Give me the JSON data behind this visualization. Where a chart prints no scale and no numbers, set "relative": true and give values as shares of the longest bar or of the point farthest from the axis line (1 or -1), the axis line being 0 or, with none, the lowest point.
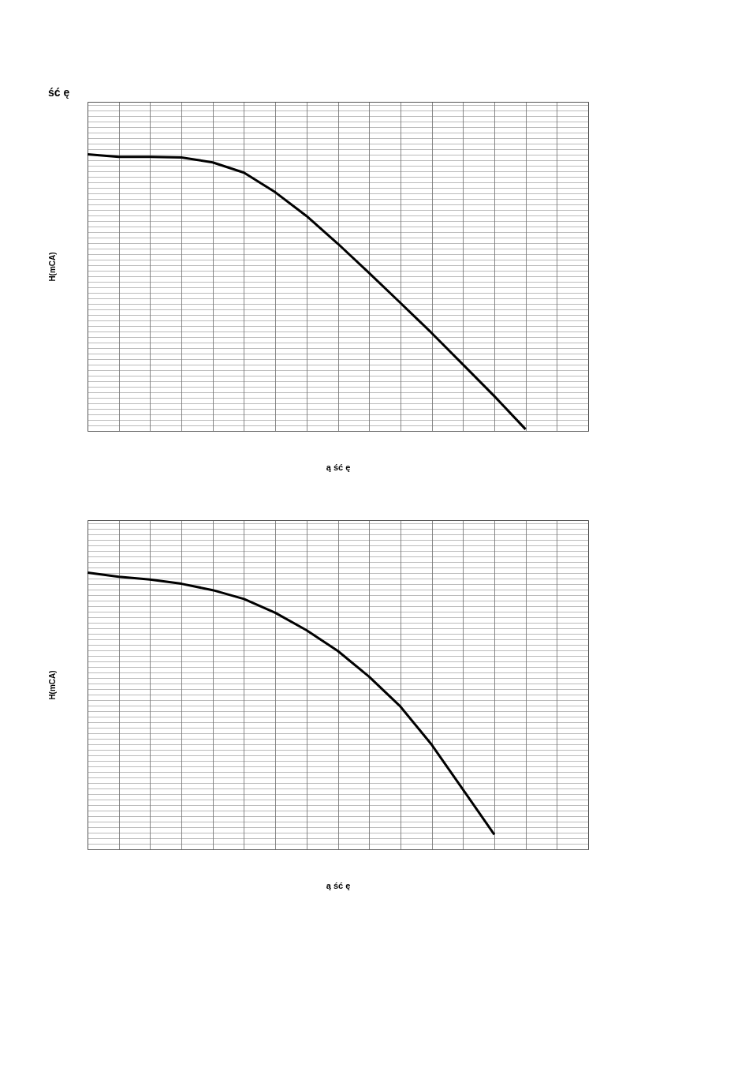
{
  "chart_data": [
    {
      "type": "line",
      "title": "ść ę",
      "xlabel": "ą ść ę",
      "ylabel": "H(mCA)",
      "relative": true,
      "grid": true,
      "legend": false,
      "tick_labels": false,
      "line_style": "solid",
      "marker": "none",
      "categories": [
        null,
        null,
        null,
        null,
        null,
        null,
        null,
        null,
        null,
        null,
        null,
        null,
        null,
        null,
        null,
        null,
        null
      ],
      "series": [
        {
          "color": "#000000",
          "values": [
            1,
            0.991,
            0.991,
            0.989,
            0.971,
            0.934,
            0.863,
            0.777,
            0.677,
            0.571,
            0.463,
            0.354,
            0.24,
            0.126,
            0.006,
            null,
            null
          ]
        }
      ]
    },
    {
      "type": "line",
      "xlabel": "ą ść ę",
      "ylabel": "H(mCA)",
      "relative": true,
      "grid": true,
      "legend": false,
      "tick_labels": false,
      "line_style": "solid",
      "marker": "none",
      "categories": [
        null,
        null,
        null,
        null,
        null,
        null,
        null,
        null,
        null,
        null,
        null,
        null,
        null,
        null,
        null,
        null,
        null
      ],
      "series": [
        {
          "color": "#000000",
          "values": [
            1,
            0.985,
            0.975,
            0.96,
            0.937,
            0.905,
            0.855,
            0.792,
            0.717,
            0.624,
            0.516,
            0.378,
            0.216,
            0.053,
            null,
            null,
            null
          ]
        }
      ]
    }
  ]
}
